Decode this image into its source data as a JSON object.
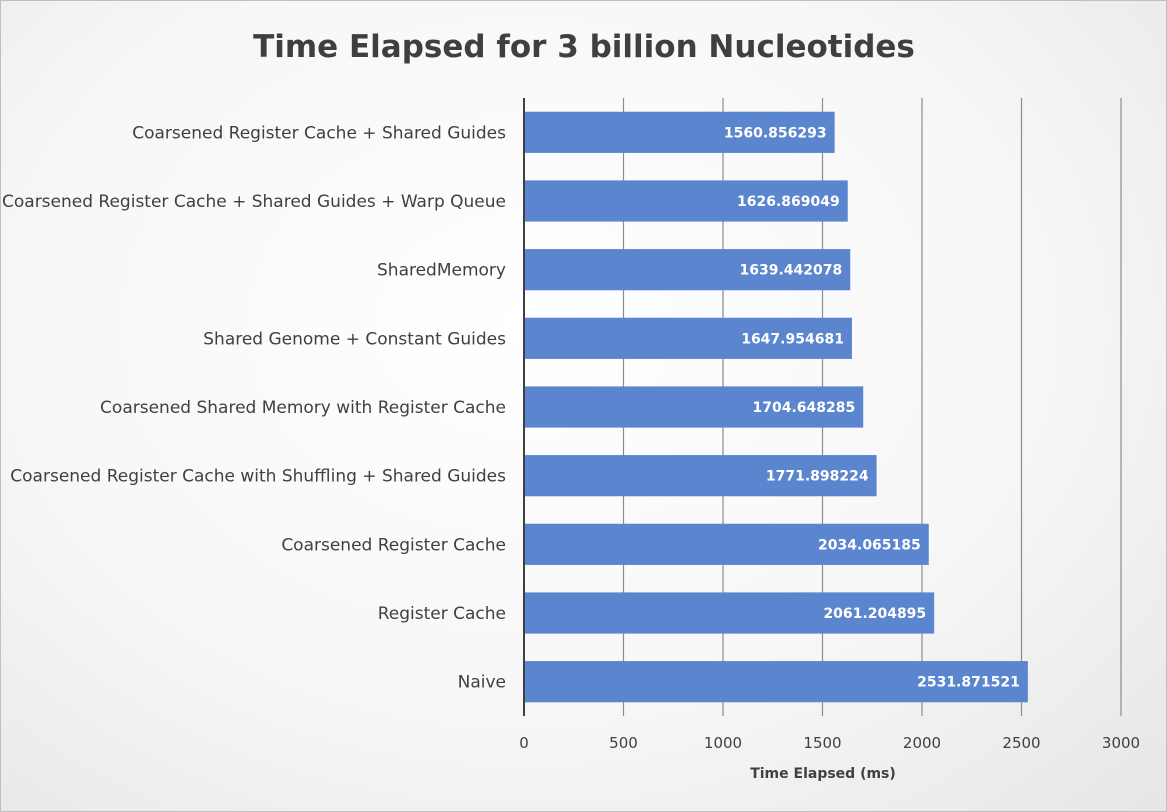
{
  "chart_data": {
    "type": "bar",
    "orientation": "horizontal",
    "title": "Time Elapsed for 3 billion Nucleotides",
    "xlabel": "Time Elapsed (ms)",
    "ylabel": "",
    "xlim": [
      0,
      3000
    ],
    "xticks": [
      "0",
      "500",
      "1000",
      "1500",
      "2000",
      "2500",
      "3000"
    ],
    "grid": "vertical",
    "legend": "none",
    "bar_color": "#5b86cf",
    "categories": [
      "Coarsened Register Cache + Shared Guides",
      "Coarsened Register Cache + Shared Guides + Warp Queue",
      "SharedMemory",
      "Shared Genome + Constant Guides",
      "Coarsened Shared Memory with Register Cache",
      "Coarsened Register Cache with Shuffling + Shared Guides",
      "Coarsened Register Cache",
      "Register Cache",
      "Naive"
    ],
    "values": [
      1560.856293,
      1626.869049,
      1639.442078,
      1647.954681,
      1704.648285,
      1771.898224,
      2034.065185,
      2061.204895,
      2531.871521
    ],
    "data_labels": [
      "1560.856293",
      "1626.869049",
      "1639.442078",
      "1647.954681",
      "1704.648285",
      "1771.898224",
      "2034.065185",
      "2061.204895",
      "2531.871521"
    ]
  }
}
